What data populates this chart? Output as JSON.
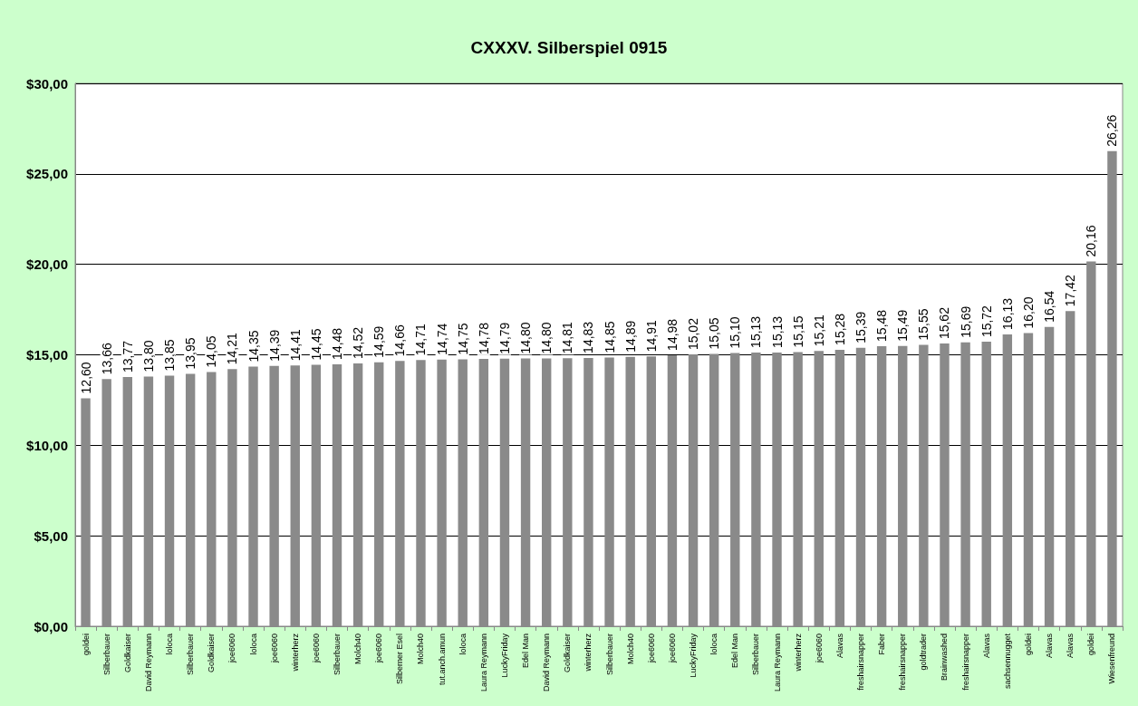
{
  "chart_data": {
    "type": "bar",
    "title": "CXXXV. Silberspiel 0915",
    "categories": [
      "goldei",
      "Silberbauer",
      "Goldkaiser",
      "David Reymann",
      "loloca",
      "Silberbauer",
      "Goldkaiser",
      "joe6060",
      "loloca",
      "joe6060",
      "winterherz",
      "joe6060",
      "Silberbauer",
      "Molch40",
      "joe6060",
      "Silberner Esel",
      "Molch40",
      "tut.anch.amun",
      "loloca",
      "Laura Reymann",
      "LuckyFriday",
      "Edel Man",
      "David Reymann",
      "Goldkaiser",
      "winterherz",
      "Silberbauer",
      "Molch40",
      "joe6060",
      "joe6060",
      "LuckyFriday",
      "loloca",
      "Edel Man",
      "Silberbauer",
      "Laura Reymann",
      "winterherz",
      "joe6060",
      "Alavas",
      "freshairsnapper",
      "Faber",
      "freshairsnapper",
      "goldtrader",
      "Brainwashed",
      "freshairsnapper",
      "Alavas",
      "sachsennugget",
      "goldei",
      "Alavas",
      "Alavas",
      "goldei",
      "Wiesenfreund"
    ],
    "values": [
      12.6,
      13.66,
      13.77,
      13.8,
      13.85,
      13.95,
      14.05,
      14.21,
      14.35,
      14.39,
      14.41,
      14.45,
      14.48,
      14.52,
      14.59,
      14.66,
      14.71,
      14.74,
      14.75,
      14.78,
      14.79,
      14.8,
      14.8,
      14.81,
      14.83,
      14.85,
      14.89,
      14.91,
      14.98,
      15.02,
      15.05,
      15.1,
      15.13,
      15.13,
      15.15,
      15.21,
      15.28,
      15.39,
      15.48,
      15.49,
      15.55,
      15.62,
      15.69,
      15.72,
      16.13,
      16.2,
      16.54,
      17.42,
      20.16,
      26.26
    ],
    "value_labels": [
      "12,60",
      "13,66",
      "13,77",
      "13,80",
      "13,85",
      "13,95",
      "14,05",
      "14,21",
      "14,35",
      "14,39",
      "14,41",
      "14,45",
      "14,48",
      "14,52",
      "14,59",
      "14,66",
      "14,71",
      "14,74",
      "14,75",
      "14,78",
      "14,79",
      "14,80",
      "14,80",
      "14,81",
      "14,83",
      "14,85",
      "14,89",
      "14,91",
      "14,98",
      "15,02",
      "15,05",
      "15,10",
      "15,13",
      "15,13",
      "15,15",
      "15,21",
      "15,28",
      "15,39",
      "15,48",
      "15,49",
      "15,55",
      "15,62",
      "15,69",
      "15,72",
      "16,13",
      "16,20",
      "16,54",
      "17,42",
      "20,16",
      "26,26"
    ],
    "color": "#8a8a8a",
    "ylim": [
      0,
      30
    ],
    "yticks": [
      {
        "value": 0,
        "label": "$0,00"
      },
      {
        "value": 5,
        "label": "$5,00"
      },
      {
        "value": 10,
        "label": "$10,00"
      },
      {
        "value": 15,
        "label": "$15,00"
      },
      {
        "value": 20,
        "label": "$20,00"
      },
      {
        "value": 25,
        "label": "$25,00"
      },
      {
        "value": 30,
        "label": "$30,00"
      }
    ],
    "grid": "y"
  }
}
